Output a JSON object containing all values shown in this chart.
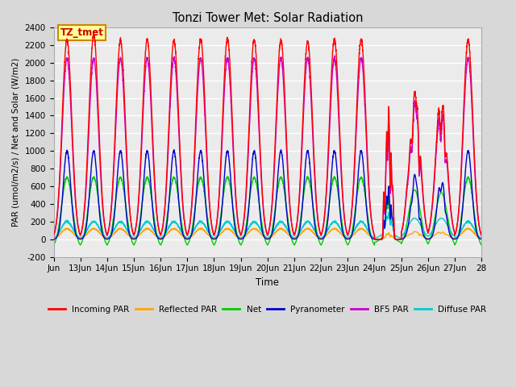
{
  "title": "Tonzi Tower Met: Solar Radiation",
  "ylabel": "PAR (umol/m2/s) / Net and Solar (W/m2)",
  "xlabel": "Time",
  "annotation": "TZ_tmet",
  "ylim": [
    -200,
    2400
  ],
  "yticks": [
    -200,
    0,
    200,
    400,
    600,
    800,
    1000,
    1200,
    1400,
    1600,
    1800,
    2000,
    2200,
    2400
  ],
  "x_start": 12,
  "x_end": 28,
  "xtick_positions": [
    12,
    13,
    14,
    15,
    16,
    17,
    18,
    19,
    20,
    21,
    22,
    23,
    24,
    25,
    26,
    27,
    28
  ],
  "xtick_labels": [
    "Jun",
    "13Jun",
    "14Jun",
    "15Jun",
    "16Jun",
    "17Jun",
    "18Jun",
    "19Jun",
    "20Jun",
    "21Jun",
    "22Jun",
    "23Jun",
    "24Jun",
    "25Jun",
    "26Jun",
    "27Jun",
    "28"
  ],
  "colors": {
    "incoming_par": "#ff0000",
    "reflected_par": "#ffa500",
    "net": "#00cc00",
    "pyranometer": "#0000cc",
    "bf5_par": "#cc00cc",
    "diffuse_par": "#00cccc"
  },
  "legend_labels": [
    "Incoming PAR",
    "Reflected PAR",
    "Net",
    "Pyranometer",
    "BF5 PAR",
    "Diffuse PAR"
  ],
  "fig_bg_color": "#d8d8d8",
  "plot_bg_color": "#ebebeb",
  "grid_color": "#ffffff",
  "annotation_box_color": "#ffff99",
  "annotation_text_color": "#cc0000",
  "annotation_border_color": "#cc8800",
  "peaks": {
    "incoming_clear": 2250,
    "bf5_clear": 2050,
    "pyranometer_clear": 1000,
    "net_clear": 700,
    "diffuse_clear": 200,
    "reflected_clear": 120
  },
  "night_net": -100,
  "resolution": 288
}
